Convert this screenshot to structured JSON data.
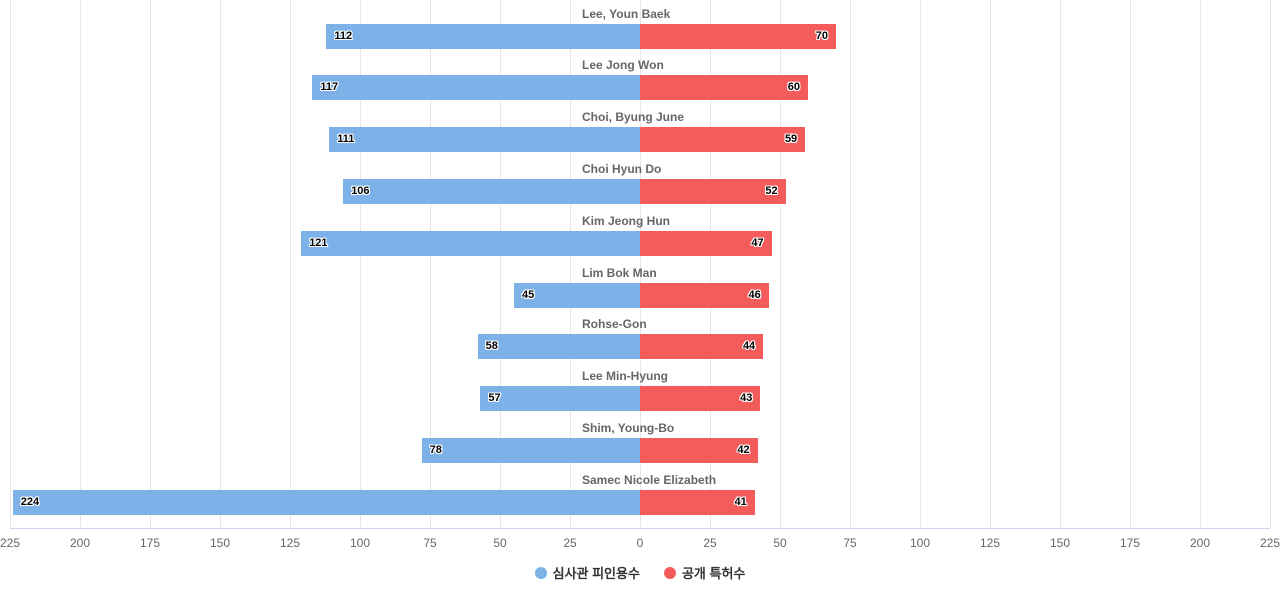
{
  "chart_data": {
    "type": "bar",
    "variant": "diverging-horizontal",
    "title": "",
    "xlabel": "",
    "ylabel": "",
    "grid": true,
    "legend_position": "bottom-center",
    "categories": [
      "Lee, Youn Baek",
      "Lee Jong Won",
      "Choi, Byung June",
      "Choi Hyun Do",
      "Kim Jeong Hun",
      "Lim Bok Man",
      "Rohse-Gon",
      "Lee Min-Hyung",
      "Shim, Young-Bo",
      "Samec Nicole Elizabeth"
    ],
    "series": [
      {
        "name": "심사관 피인용수",
        "direction": "left",
        "color": "#7cb2e8",
        "values": [
          112,
          117,
          111,
          106,
          121,
          45,
          58,
          57,
          78,
          224
        ]
      },
      {
        "name": "공개 특허수",
        "direction": "right",
        "color": "#f45b5b",
        "values": [
          70,
          60,
          59,
          52,
          47,
          46,
          44,
          43,
          42,
          41
        ]
      }
    ],
    "axis": {
      "xlim": [
        -225,
        225
      ],
      "tick_step": 25,
      "tick_values": [
        -225,
        -200,
        -175,
        -150,
        -125,
        -100,
        -75,
        -50,
        -25,
        0,
        25,
        50,
        75,
        100,
        125,
        150,
        175,
        200,
        225
      ],
      "tick_labels": [
        "225",
        "200",
        "175",
        "150",
        "125",
        "100",
        "75",
        "50",
        "25",
        "0",
        "25",
        "50",
        "75",
        "100",
        "125",
        "150",
        "175",
        "200",
        "225"
      ]
    }
  },
  "colors": {
    "background": "#ffffff",
    "gridline": "#e6e6e6",
    "axis_line": "#ccd6eb",
    "tick_label": "#666666",
    "category_label": "#666666",
    "value_label": "#000000",
    "legend_text": "#333333"
  }
}
